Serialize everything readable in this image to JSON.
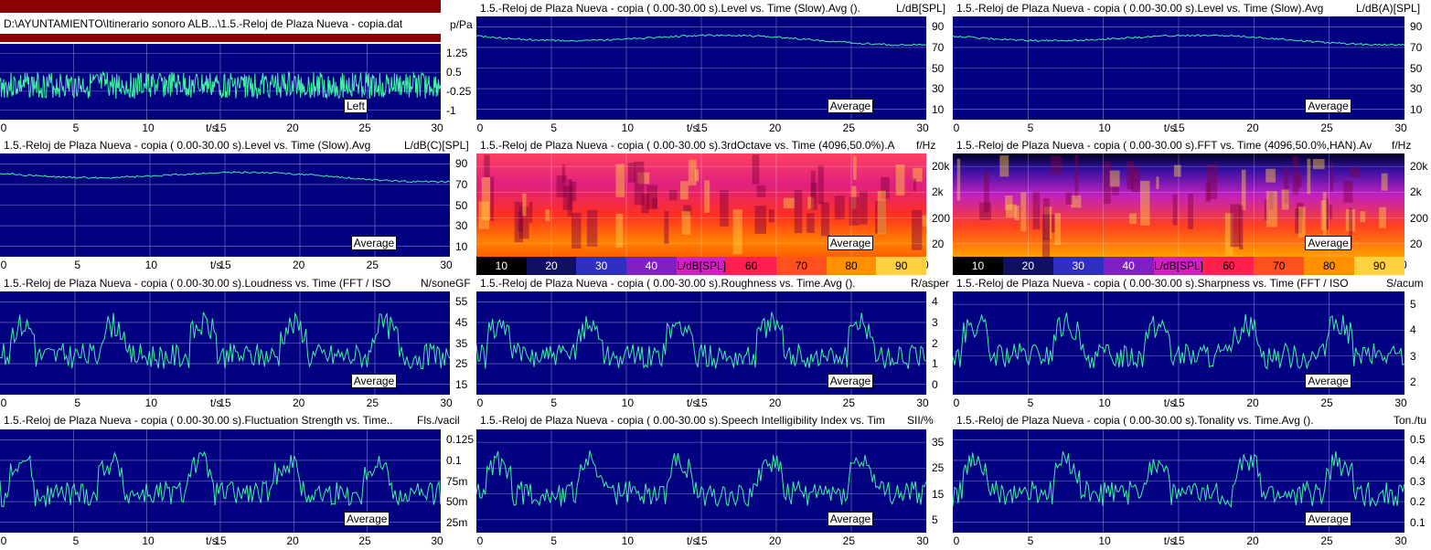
{
  "file_path": "D:\\AYUNTAMIENTO\\Itinerario sonoro ALB...\\1.5.-Reloj de Plaza Nueva - copia.dat",
  "avg_label": "Average",
  "left_label": "Left",
  "time_unit": "t/s",
  "x_ticks": [
    "0",
    "5",
    "10",
    "15",
    "20",
    "25",
    "30"
  ],
  "colorbar_ticks": [
    "10",
    "20",
    "30",
    "40",
    "L/dB[SPL]",
    "60",
    "70",
    "80",
    "90"
  ],
  "panels": [
    {
      "id": "waveform",
      "title": "",
      "unit": "p/Pa",
      "y_ticks": [
        "1.25",
        "0.5",
        "-0.25",
        "-1"
      ]
    },
    {
      "id": "level_spl",
      "title": "1.5.-Reloj de Plaza Nueva - copia ( 0.00-30.00 s).Level vs. Time (Slow).Avg ().",
      "unit": "L/dB[SPL]",
      "y_ticks": [
        "90",
        "70",
        "50",
        "30",
        "10"
      ]
    },
    {
      "id": "level_a",
      "title": "1.5.-Reloj de Plaza Nueva - copia ( 0.00-30.00 s).Level vs. Time (Slow).Avg",
      "unit": "L/dB(A)[SPL]",
      "y_ticks": [
        "90",
        "70",
        "50",
        "30",
        "10"
      ]
    },
    {
      "id": "level_c",
      "title": "1.5.-Reloj de Plaza Nueva - copia ( 0.00-30.00 s).Level vs. Time (Slow).Avg",
      "unit": "L/dB(C)[SPL]",
      "y_ticks": [
        "90",
        "70",
        "50",
        "30",
        "10"
      ]
    },
    {
      "id": "third_octave",
      "title": "1.5.-Reloj de Plaza Nueva - copia ( 0.00-30.00 s).3rdOctave vs. Time (4096,50.0%).A",
      "unit": "f/Hz",
      "y_ticks": [
        "20k",
        "2k",
        "200",
        "20"
      ]
    },
    {
      "id": "fft",
      "title": "1.5.-Reloj de Plaza Nueva - copia ( 0.00-30.00 s).FFT vs. Time (4096,50.0%,HAN).Av",
      "unit": "f/Hz",
      "y_ticks": [
        "20k",
        "2k",
        "200",
        "20"
      ]
    },
    {
      "id": "loudness",
      "title": "1.5.-Reloj de Plaza Nueva - copia ( 0.00-30.00 s).Loudness vs. Time (FFT / ISO",
      "unit": "N/soneGF",
      "y_ticks": [
        "55",
        "45",
        "35",
        "25",
        "15"
      ]
    },
    {
      "id": "roughness",
      "title": "1.5.-Reloj de Plaza Nueva - copia ( 0.00-30.00 s).Roughness vs. Time.Avg ().",
      "unit": "R/asper",
      "y_ticks": [
        "4",
        "3",
        "2",
        "1",
        "0"
      ]
    },
    {
      "id": "sharpness",
      "title": "1.5.-Reloj de Plaza Nueva - copia ( 0.00-30.00 s).Sharpness vs. Time (FFT / ISO",
      "unit": "S/acum",
      "y_ticks": [
        "5",
        "4",
        "3",
        "2"
      ]
    },
    {
      "id": "fluctuation",
      "title": "1.5.-Reloj de Plaza Nueva - copia ( 0.00-30.00 s).Fluctuation Strength vs. Time..",
      "unit": "Fls./vacil",
      "y_ticks": [
        "0.125",
        "0.1",
        "75m",
        "50m",
        "25m"
      ]
    },
    {
      "id": "sii",
      "title": "1.5.-Reloj de Plaza Nueva - copia ( 0.00-30.00 s).Speech Intelligibility Index vs. Tim",
      "unit": "SII/%",
      "y_ticks": [
        "35",
        "25",
        "15",
        "5"
      ]
    },
    {
      "id": "tonality",
      "title": "1.5.-Reloj de Plaza Nueva - copia ( 0.00-30.00 s).Tonality vs. Time.Avg ().",
      "unit": "Ton./tu",
      "y_ticks": [
        "0.5",
        "0.4",
        "0.3",
        "0.2",
        "0.1"
      ]
    }
  ],
  "colors": {
    "plot_bg": "#000080",
    "trace": "#40f0a0",
    "grid": "#8080c0"
  }
}
